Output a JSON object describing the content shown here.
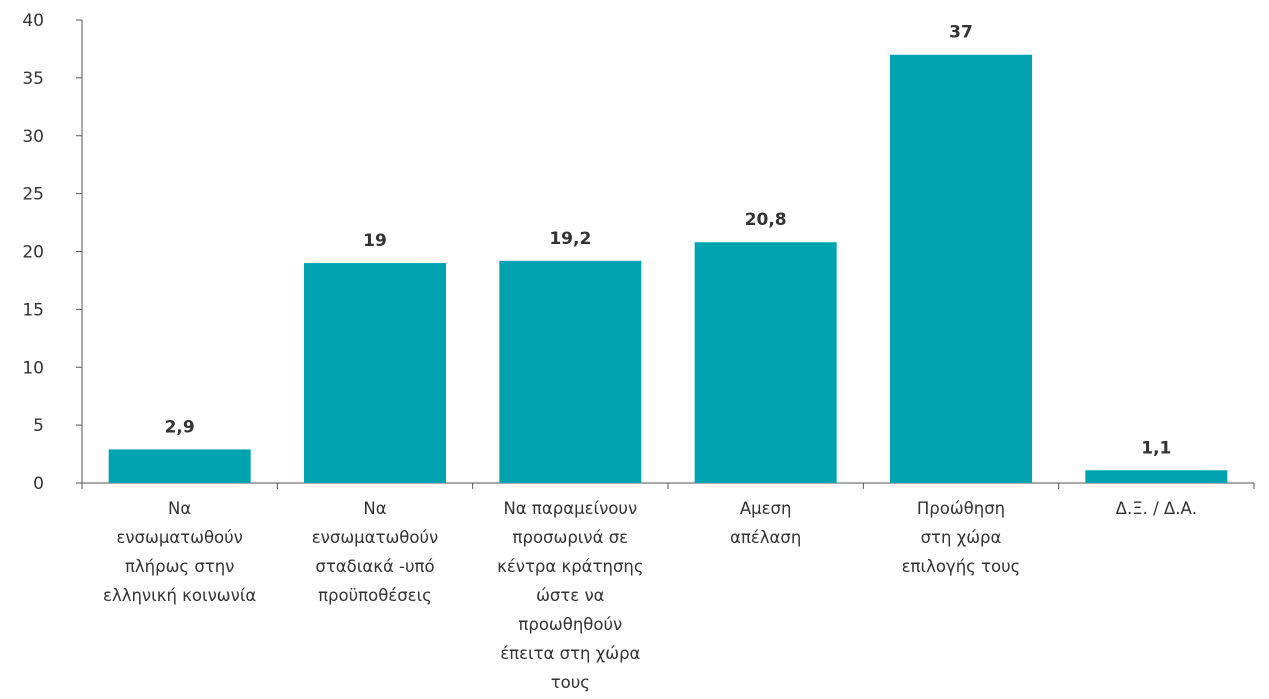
{
  "chart_data": {
    "type": "bar",
    "categories": [
      [
        "Να",
        "ενσωματωθούν",
        "πλήρως στην",
        "ελληνική κοινωνία"
      ],
      [
        "Να",
        "ενσωματωθούν",
        "σταδιακά -υπό",
        "προϋποθέσεις"
      ],
      [
        "Να παραμείνουν",
        "προσωρινά σε",
        "κέντρα κράτησης",
        "ώστε να",
        "προωθηθούν",
        "έπειτα στη χώρα",
        "τους"
      ],
      [
        "Αμεση",
        "απέλαση"
      ],
      [
        "Προώθηση",
        "στη χώρα",
        "επιλογής τους"
      ],
      [
        "Δ.Ξ. / Δ.Α."
      ]
    ],
    "values": [
      2.9,
      19,
      19.2,
      20.8,
      37,
      1.1
    ],
    "value_labels": [
      "2,9",
      "19",
      "19,2",
      "20,8",
      "37",
      "1,1"
    ],
    "yticks": [
      0,
      5,
      10,
      15,
      20,
      25,
      30,
      35,
      40
    ],
    "ylim": [
      0,
      40
    ],
    "grid": false,
    "legend": "none",
    "bar_color": "#00A3AF",
    "axis_color": "#555555",
    "text_color": "#333333"
  }
}
